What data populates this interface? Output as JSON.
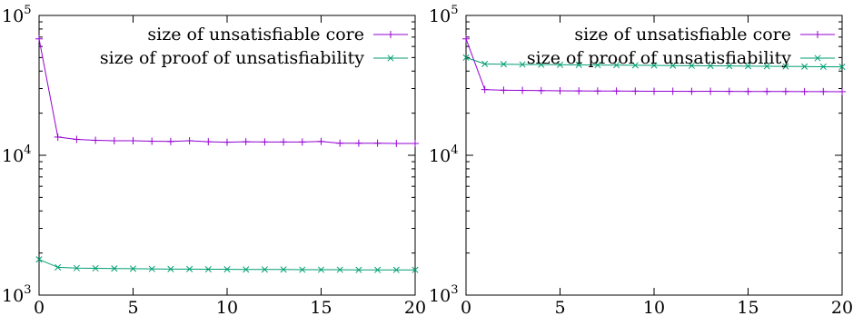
{
  "colors": {
    "core": "#9400d3",
    "proof": "#009e73",
    "axis": "#000000"
  },
  "chart_data": [
    {
      "type": "line",
      "title": "",
      "xlabel": "",
      "ylabel": "",
      "y_scale": "log",
      "xlim": [
        0,
        20
      ],
      "ylim": [
        1000,
        100000
      ],
      "legend_position": "top-right",
      "grid": false,
      "x_ticks": [
        0,
        5,
        10,
        15,
        20
      ],
      "x_tick_labels": [
        "0",
        "5",
        "10",
        "15",
        "20"
      ],
      "y_ticks": [
        1000,
        10000,
        100000
      ],
      "y_tick_labels": [
        {
          "base": "10",
          "exp": "3"
        },
        {
          "base": "10",
          "exp": "4"
        },
        {
          "base": "10",
          "exp": "5"
        }
      ],
      "x": [
        0,
        1,
        2,
        3,
        4,
        5,
        6,
        7,
        8,
        9,
        10,
        11,
        12,
        13,
        14,
        15,
        16,
        17,
        18,
        19,
        20
      ],
      "series": [
        {
          "name": "size of unsatisfiable core",
          "marker": "plus",
          "color": "#9400d3",
          "values": [
            68000,
            13500,
            13000,
            12800,
            12700,
            12700,
            12600,
            12550,
            12700,
            12500,
            12400,
            12500,
            12450,
            12450,
            12450,
            12550,
            12200,
            12200,
            12200,
            12150,
            12150
          ]
        },
        {
          "name": "size of proof of unsatisfiability",
          "marker": "cross",
          "color": "#009e73",
          "values": [
            1800,
            1580,
            1560,
            1555,
            1550,
            1545,
            1540,
            1535,
            1535,
            1530,
            1530,
            1525,
            1525,
            1525,
            1520,
            1520,
            1520,
            1515,
            1515,
            1515,
            1515
          ]
        }
      ]
    },
    {
      "type": "line",
      "title": "",
      "xlabel": "",
      "ylabel": "",
      "y_scale": "log",
      "xlim": [
        0,
        20
      ],
      "ylim": [
        1000,
        100000
      ],
      "legend_position": "top-right",
      "grid": false,
      "x_ticks": [
        0,
        5,
        10,
        15,
        20
      ],
      "x_tick_labels": [
        "0",
        "5",
        "10",
        "15",
        "20"
      ],
      "y_ticks": [
        1000,
        10000,
        100000
      ],
      "y_tick_labels": [
        {
          "base": "10",
          "exp": "3"
        },
        {
          "base": "10",
          "exp": "4"
        },
        {
          "base": "10",
          "exp": "5"
        }
      ],
      "x": [
        0,
        1,
        2,
        3,
        4,
        5,
        6,
        7,
        8,
        9,
        10,
        11,
        12,
        13,
        14,
        15,
        16,
        17,
        18,
        19,
        20
      ],
      "series": [
        {
          "name": "size of unsatisfiable core",
          "marker": "plus",
          "color": "#9400d3",
          "values": [
            68000,
            29500,
            29200,
            29100,
            29000,
            28900,
            28850,
            28800,
            28800,
            28750,
            28700,
            28700,
            28650,
            28700,
            28650,
            28600,
            28600,
            28600,
            28550,
            28550,
            28500
          ]
        },
        {
          "name": "size of proof of unsatisfiability",
          "marker": "cross",
          "color": "#009e73",
          "values": [
            50000,
            45000,
            44800,
            44600,
            44500,
            44400,
            44300,
            44200,
            44100,
            44000,
            43900,
            43800,
            43700,
            43600,
            43500,
            43400,
            43300,
            43200,
            43100,
            43000,
            42900
          ]
        }
      ]
    }
  ]
}
